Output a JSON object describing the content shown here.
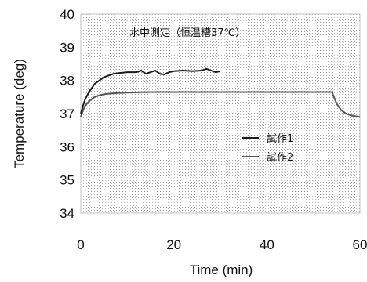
{
  "chart_data": {
    "type": "line",
    "annotation": "水中測定（恒温槽37℃）",
    "xlabel": "Time (min)",
    "ylabel": "Temperature (deg)",
    "xlim": [
      0,
      60
    ],
    "ylim": [
      34,
      40
    ],
    "x_ticks": [
      "0",
      "20",
      "40",
      "60"
    ],
    "y_ticks": [
      "34",
      "35",
      "36",
      "37",
      "38",
      "39",
      "40"
    ],
    "grid": false,
    "legend_position": "center-right",
    "series": [
      {
        "name": "試作1",
        "color": "#1a1a1a",
        "x": [
          0,
          0.5,
          1,
          2,
          3,
          4,
          5,
          6,
          7,
          8,
          10,
          12,
          13,
          14,
          15,
          16,
          17,
          18,
          19,
          20,
          22,
          24,
          26,
          27,
          28,
          29,
          30
        ],
        "y": [
          37.0,
          37.25,
          37.45,
          37.7,
          37.9,
          38.0,
          38.1,
          38.15,
          38.2,
          38.22,
          38.25,
          38.25,
          38.3,
          38.2,
          38.25,
          38.3,
          38.2,
          38.18,
          38.25,
          38.28,
          38.3,
          38.28,
          38.3,
          38.35,
          38.3,
          38.25,
          38.28
        ]
      },
      {
        "name": "試作2",
        "color": "#555555",
        "x": [
          0,
          0.5,
          1,
          2,
          3,
          4,
          5,
          6,
          8,
          10,
          15,
          20,
          30,
          40,
          50,
          54,
          55,
          56,
          57,
          58,
          59,
          60
        ],
        "y": [
          36.9,
          37.1,
          37.25,
          37.4,
          37.5,
          37.55,
          37.58,
          37.6,
          37.62,
          37.63,
          37.65,
          37.65,
          37.65,
          37.65,
          37.65,
          37.65,
          37.3,
          37.1,
          37.0,
          36.95,
          36.92,
          36.9
        ]
      }
    ]
  }
}
